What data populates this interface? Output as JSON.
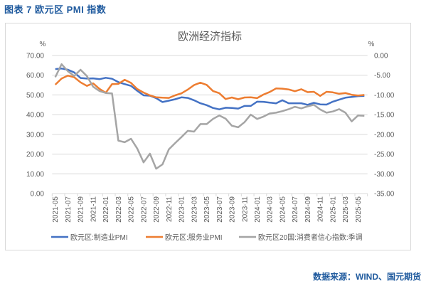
{
  "figure_title": "图表 7 欧元区 PMI 指数",
  "source": "数据来源：WIND、国元期货",
  "chart_data": {
    "type": "line",
    "title": "欧洲经济指标",
    "left_axis": {
      "unit_label": "%",
      "ylim": [
        0,
        70
      ],
      "ticks": [
        "0.00",
        "10.00",
        "20.00",
        "30.00",
        "40.00",
        "50.00",
        "60.00",
        "70.00"
      ]
    },
    "right_axis": {
      "unit_label": "%",
      "ylim": [
        -35,
        0
      ],
      "ticks": [
        "-35.00",
        "-30.00",
        "-25.00",
        "-20.00",
        "-15.00",
        "-10.00",
        "-5.00",
        "0.00"
      ]
    },
    "grid": "horizontal",
    "legend_position": "bottom",
    "x": [
      "2021-05",
      "2021-06",
      "2021-07",
      "2021-08",
      "2021-09",
      "2021-10",
      "2021-11",
      "2021-12",
      "2022-01",
      "2022-02",
      "2022-03",
      "2022-04",
      "2022-05",
      "2022-06",
      "2022-07",
      "2022-08",
      "2022-09",
      "2022-10",
      "2022-11",
      "2022-12",
      "2023-01",
      "2023-02",
      "2023-03",
      "2023-04",
      "2023-05",
      "2023-06",
      "2023-07",
      "2023-08",
      "2023-09",
      "2023-10",
      "2023-11",
      "2023-12",
      "2024-01",
      "2024-02",
      "2024-03",
      "2024-04",
      "2024-05",
      "2024-06",
      "2024-07",
      "2024-08",
      "2024-09",
      "2024-10",
      "2024-11",
      "2024-12",
      "2025-01",
      "2025-02",
      "2025-03",
      "2025-04",
      "2025-05",
      "2025-06"
    ],
    "x_tick_labels": [
      "2021-05",
      "2021-07",
      "2021-09",
      "2021-11",
      "2022-01",
      "2022-03",
      "2022-05",
      "2022-07",
      "2022-09",
      "2022-11",
      "2023-01",
      "2023-03",
      "2023-05",
      "2023-07",
      "2023-09",
      "2023-11",
      "2024-01",
      "2024-03",
      "2024-05",
      "2024-07",
      "2024-09",
      "2024-11",
      "2025-01",
      "2025-03",
      "2025-05"
    ],
    "series": [
      {
        "name": "欧元区:制造业PMI",
        "axis": "left",
        "color": "#4472c4",
        "values": [
          63.1,
          63.4,
          62.8,
          61.4,
          58.6,
          58.3,
          58.4,
          58.0,
          58.7,
          58.2,
          56.5,
          55.5,
          54.6,
          52.1,
          49.8,
          49.6,
          48.4,
          46.4,
          47.1,
          47.8,
          48.8,
          48.5,
          47.3,
          45.8,
          44.8,
          43.4,
          42.7,
          43.5,
          43.4,
          43.1,
          44.4,
          44.4,
          46.6,
          46.5,
          46.1,
          45.7,
          47.3,
          45.8,
          45.8,
          45.8,
          45.0,
          46.0,
          45.2,
          45.1,
          46.6,
          47.6,
          48.6,
          49.0,
          49.4,
          49.5
        ]
      },
      {
        "name": "欧元区:服务业PMI",
        "axis": "left",
        "color": "#ed7d31",
        "values": [
          55.2,
          58.3,
          59.8,
          59.0,
          56.4,
          54.6,
          55.9,
          53.1,
          51.1,
          55.5,
          55.6,
          57.7,
          56.1,
          53.0,
          51.2,
          49.8,
          48.8,
          48.6,
          48.5,
          49.8,
          50.8,
          52.7,
          55.0,
          56.2,
          55.1,
          52.0,
          50.9,
          47.9,
          48.7,
          47.8,
          48.7,
          48.8,
          48.4,
          50.2,
          51.5,
          53.3,
          53.2,
          52.8,
          51.9,
          52.9,
          51.4,
          51.6,
          49.5,
          51.6,
          51.3,
          50.6,
          51.0,
          50.1,
          49.7,
          50.0
        ]
      },
      {
        "name": "欧元区20国:消费者信心指数:季调",
        "axis": "right",
        "color": "#a5a5a5",
        "values": [
          -5.5,
          -2.2,
          -4.0,
          -5.2,
          -3.6,
          -5.2,
          -7.9,
          -9.0,
          -9.5,
          -9.6,
          -21.6,
          -22.0,
          -21.1,
          -23.6,
          -27.1,
          -24.9,
          -28.7,
          -27.6,
          -23.8,
          -22.2,
          -20.7,
          -19.1,
          -19.3,
          -17.4,
          -17.4,
          -16.1,
          -15.2,
          -16.0,
          -17.8,
          -18.2,
          -16.9,
          -15.0,
          -16.1,
          -15.5,
          -14.7,
          -14.5,
          -14.1,
          -13.6,
          -13.0,
          -13.4,
          -12.9,
          -12.5,
          -13.7,
          -14.5,
          -14.2,
          -13.6,
          -14.5,
          -16.7,
          -15.2,
          -15.3
        ]
      }
    ]
  }
}
